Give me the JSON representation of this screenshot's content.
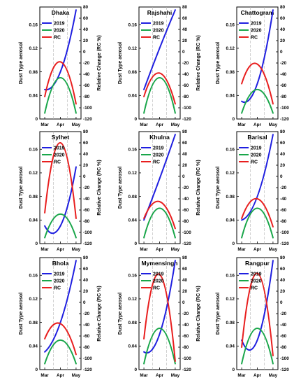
{
  "figure": {
    "xticks": [
      "Mar",
      "Apr",
      "May"
    ],
    "ylabel_left": "Dust Type aerosol",
    "ylabel_right": "Relative Change (RC %)",
    "left_ticks": [
      "0",
      "0.04",
      "0.08",
      "0.12",
      "0.16"
    ],
    "right_ticks": [
      "80",
      "60",
      "40",
      "20",
      "0",
      "-20",
      "-40",
      "-60",
      "-80",
      "-100",
      "-120"
    ],
    "legend": [
      "2019",
      "2020",
      "RC"
    ],
    "colors": {
      "2019": "#1f1fe0",
      "2020": "#19a64a",
      "RC": "#e81e1e"
    }
  },
  "chart_data": [
    {
      "type": "line",
      "title": "Dhaka",
      "categories": [
        "Mar",
        "Apr",
        "May"
      ],
      "ylim": [
        0,
        0.19
      ],
      "y2lim": [
        -120,
        80
      ],
      "xlabel": "",
      "ylabel": "Dust Type aerosol",
      "y2label": "Relative Change (RC %)",
      "series": [
        {
          "name": "2019",
          "axis": "left",
          "values": [
            0.05,
            0.08,
            0.185
          ]
        },
        {
          "name": "2020",
          "axis": "left",
          "values": [
            0.01,
            0.07,
            0.01
          ]
        },
        {
          "name": "RC",
          "axis": "right",
          "values": [
            -80,
            -18,
            -93
          ]
        }
      ]
    },
    {
      "type": "line",
      "title": "Rajshahi",
      "categories": [
        "Mar",
        "Apr",
        "May"
      ],
      "ylim": [
        0,
        0.19
      ],
      "y2lim": [
        -120,
        80
      ],
      "xlabel": "",
      "ylabel": "Dust Type aerosol",
      "y2label": "Relative Change (RC %)",
      "series": [
        {
          "name": "2019",
          "axis": "left",
          "values": [
            0.05,
            0.12,
            0.185
          ]
        },
        {
          "name": "2020",
          "axis": "left",
          "values": [
            0.01,
            0.07,
            0.01
          ]
        },
        {
          "name": "RC",
          "axis": "right",
          "values": [
            -80,
            -38,
            -93
          ]
        }
      ]
    },
    {
      "type": "line",
      "title": "Chattogram",
      "categories": [
        "Mar",
        "Apr",
        "May"
      ],
      "ylim": [
        0,
        0.19
      ],
      "y2lim": [
        -120,
        80
      ],
      "xlabel": "",
      "ylabel": "Dust Type aerosol",
      "y2label": "Relative Change (RC %)",
      "series": [
        {
          "name": "2019",
          "axis": "left",
          "values": [
            0.03,
            0.06,
            0.185
          ]
        },
        {
          "name": "2020",
          "axis": "left",
          "values": [
            0.01,
            0.05,
            0.01
          ]
        },
        {
          "name": "RC",
          "axis": "right",
          "values": [
            -57,
            -22,
            -93
          ]
        }
      ]
    },
    {
      "type": "line",
      "title": "Sylhet",
      "categories": [
        "Mar",
        "Apr",
        "May"
      ],
      "ylim": [
        0,
        0.19
      ],
      "y2lim": [
        -120,
        80
      ],
      "xlabel": "",
      "ylabel": "Dust Type aerosol",
      "y2label": "Relative Change (RC %)",
      "series": [
        {
          "name": "2019",
          "axis": "left",
          "values": [
            0.03,
            0.03,
            0.13
          ]
        },
        {
          "name": "2020",
          "axis": "left",
          "values": [
            0.01,
            0.05,
            0.01
          ]
        },
        {
          "name": "RC",
          "axis": "right",
          "values": [
            -65,
            60,
            -75
          ]
        }
      ]
    },
    {
      "type": "line",
      "title": "Khulna",
      "categories": [
        "Mar",
        "Apr",
        "May"
      ],
      "ylim": [
        0,
        0.19
      ],
      "y2lim": [
        -120,
        80
      ],
      "xlabel": "",
      "ylabel": "Dust Type aerosol",
      "y2label": "Relative Change (RC %)",
      "series": [
        {
          "name": "2019",
          "axis": "left",
          "values": [
            0.04,
            0.11,
            0.185
          ]
        },
        {
          "name": "2020",
          "axis": "left",
          "values": [
            0.01,
            0.06,
            0.01
          ]
        },
        {
          "name": "RC",
          "axis": "right",
          "values": [
            -75,
            -45,
            -93
          ]
        }
      ]
    },
    {
      "type": "line",
      "title": "Barisal",
      "categories": [
        "Mar",
        "Apr",
        "May"
      ],
      "ylim": [
        0,
        0.19
      ],
      "y2lim": [
        -120,
        80
      ],
      "xlabel": "",
      "ylabel": "Dust Type aerosol",
      "y2label": "Relative Change (RC %)",
      "series": [
        {
          "name": "2019",
          "axis": "left",
          "values": [
            0.04,
            0.08,
            0.185
          ]
        },
        {
          "name": "2020",
          "axis": "left",
          "values": [
            0.01,
            0.06,
            0.01
          ]
        },
        {
          "name": "RC",
          "axis": "right",
          "values": [
            -75,
            -40,
            -90
          ]
        }
      ]
    },
    {
      "type": "line",
      "title": "Bhola",
      "categories": [
        "Mar",
        "Apr",
        "May"
      ],
      "ylim": [
        0,
        0.19
      ],
      "y2lim": [
        -120,
        80
      ],
      "xlabel": "",
      "ylabel": "Dust Type aerosol",
      "y2label": "Relative Change (RC %)",
      "series": [
        {
          "name": "2019",
          "axis": "left",
          "values": [
            0.03,
            0.08,
            0.185
          ]
        },
        {
          "name": "2020",
          "axis": "left",
          "values": [
            0.01,
            0.05,
            0.01
          ]
        },
        {
          "name": "RC",
          "axis": "right",
          "values": [
            -65,
            -38,
            -93
          ]
        }
      ]
    },
    {
      "type": "line",
      "title": "Mymensingh",
      "categories": [
        "Mar",
        "Apr",
        "May"
      ],
      "ylim": [
        0,
        0.19
      ],
      "y2lim": [
        -120,
        80
      ],
      "xlabel": "",
      "ylabel": "Dust Type aerosol",
      "y2label": "Relative Change (RC %)",
      "series": [
        {
          "name": "2019",
          "axis": "left",
          "values": [
            0.03,
            0.06,
            0.185
          ]
        },
        {
          "name": "2020",
          "axis": "left",
          "values": [
            0.01,
            0.07,
            0.01
          ]
        },
        {
          "name": "RC",
          "axis": "right",
          "values": [
            -65,
            50,
            -105
          ]
        }
      ]
    },
    {
      "type": "line",
      "title": "Rangpur",
      "categories": [
        "Mar",
        "Apr",
        "May"
      ],
      "ylim": [
        0,
        0.19
      ],
      "y2lim": [
        -120,
        80
      ],
      "xlabel": "",
      "ylabel": "Dust Type aerosol",
      "y2label": "Relative Change (RC %)",
      "series": [
        {
          "name": "2019",
          "axis": "left",
          "values": [
            0.05,
            0.05,
            0.185
          ]
        },
        {
          "name": "2020",
          "axis": "left",
          "values": [
            0.01,
            0.07,
            0.01
          ]
        },
        {
          "name": "RC",
          "axis": "right",
          "values": [
            -80,
            52,
            -95
          ]
        }
      ]
    }
  ]
}
